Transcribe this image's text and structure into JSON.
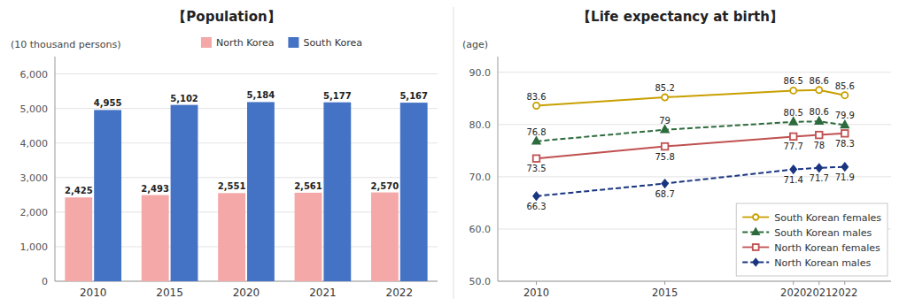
{
  "chart_data": [
    {
      "type": "bar",
      "title": "【Population】",
      "y_label": "(10 thousand persons)",
      "categories": [
        "2010",
        "2015",
        "2020",
        "2021",
        "2022"
      ],
      "series": [
        {
          "name": "North Korea",
          "color": "#F4A8A8",
          "values": [
            2425,
            2493,
            2551,
            2561,
            2570
          ],
          "value_labels": [
            "2,425",
            "2,493",
            "2,551",
            "2,561",
            "2,570"
          ]
        },
        {
          "name": "South Korea",
          "color": "#4472C4",
          "values": [
            4955,
            5102,
            5184,
            5177,
            5167
          ],
          "value_labels": [
            "4,955",
            "5,102",
            "5,184",
            "5,177",
            "5,167"
          ]
        }
      ],
      "ylim": [
        0,
        6500
      ],
      "yticks": [
        0,
        {
          "value": 1000,
          "label": "1,000"
        },
        {
          "value": 2000,
          "label": "2,000"
        },
        {
          "value": 3000,
          "label": "3,000"
        },
        {
          "value": 4000,
          "label": "4,000"
        },
        {
          "value": 5000,
          "label": "5,000"
        },
        {
          "value": 6000,
          "label": "6,000"
        }
      ],
      "grid": true,
      "legend": "top",
      "data_labels": true
    },
    {
      "type": "line",
      "title": "【Life expectancy at birth】",
      "y_label": "(age)",
      "x": [
        2010,
        2015,
        2020,
        2021,
        2022
      ],
      "xlim": [
        2008.5,
        2023.8
      ],
      "xticks": [
        2010,
        2015,
        2020,
        2021,
        2022
      ],
      "series": [
        {
          "name": "South Korean females",
          "color": "#C8A000",
          "marker": "circle",
          "line_style": "solid",
          "values": [
            83.6,
            85.2,
            86.5,
            86.6,
            85.6
          ]
        },
        {
          "name": "South Korean males",
          "color": "#2D6B3C",
          "marker": "triangle",
          "line_style": "dashed",
          "values": [
            76.8,
            79.0,
            80.5,
            80.6,
            79.9
          ]
        },
        {
          "name": "North Korean females",
          "color": "#C05050",
          "marker": "square",
          "line_style": "solid",
          "values": [
            73.5,
            75.8,
            77.7,
            78.0,
            78.3
          ]
        },
        {
          "name": "North Korean males",
          "color": "#1A3580",
          "marker": "diamond",
          "line_style": "dashed",
          "values": [
            66.3,
            68.7,
            71.4,
            71.7,
            71.9
          ]
        }
      ],
      "ylim": [
        50.0,
        93.0
      ],
      "yticks": [
        {
          "value": 50.0,
          "label": "50.0"
        },
        {
          "value": 60.0,
          "label": "60.0"
        },
        {
          "value": 70.0,
          "label": "70.0"
        },
        {
          "value": 80.0,
          "label": "80.0"
        },
        {
          "value": 90.0,
          "label": "90.0"
        }
      ],
      "grid": true,
      "legend": "bottom-right",
      "data_labels": true
    }
  ]
}
